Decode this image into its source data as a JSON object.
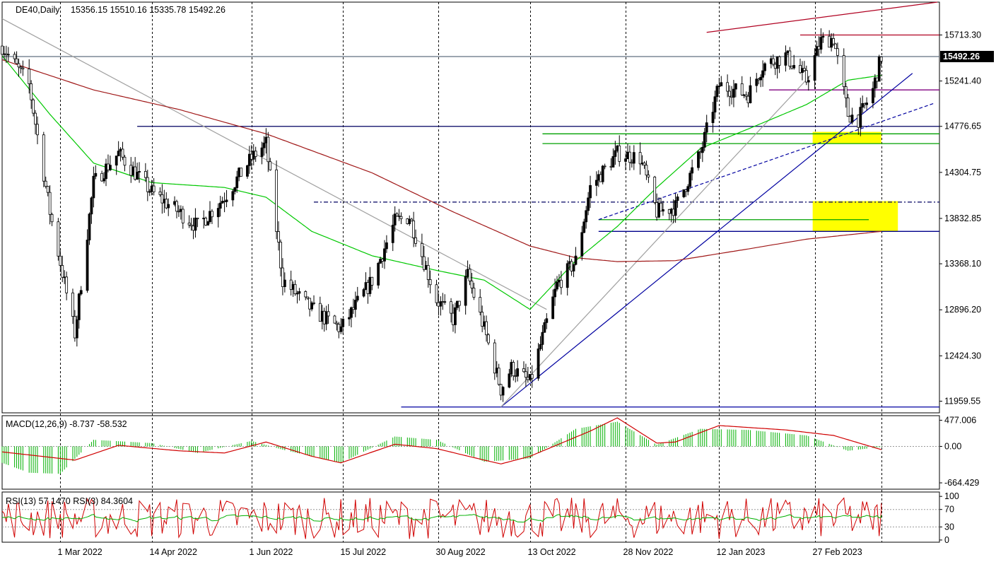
{
  "header": {
    "symbol": "DE40,Daily",
    "ohlc": "15356.15 15510.16 15335.78 15492.26"
  },
  "colors": {
    "background": "#ffffff",
    "bull_candle": "#000000",
    "bear_candle": "#ffffff",
    "ma_fast": "#00c800",
    "ma_slow": "#a01818",
    "trendline_blue": "#0000a0",
    "trendline_red": "#b00020",
    "highlight_zone": "#ffff00",
    "macd_hist": "#00b000",
    "macd_signal": "#d00000",
    "rsi13": "#00b000",
    "rsi3": "#d00000"
  },
  "chart_data": [
    {
      "type": "candlestick",
      "name": "main-price",
      "y_axis_ticks": [
        "15713.30",
        "15241.40",
        "14776.65",
        "14304.75",
        "13832.85",
        "13368.10",
        "12896.20",
        "12424.30",
        "11959.55"
      ],
      "y_axis_tick_values": [
        15713.3,
        15241.4,
        14776.65,
        14304.75,
        13832.85,
        13368.1,
        12896.2,
        12424.3,
        11959.55
      ],
      "ylim": [
        11840,
        16050
      ],
      "current_price_label": "15492.26",
      "x_tick_labels": [
        "1 Mar 2022",
        "14 Apr 2022",
        "1 Jun 2022",
        "15 Jul 2022",
        "30 Aug 2022",
        "13 Oct 2022",
        "28 Nov 2022",
        "12 Jan 2023",
        "27 Feb 2023"
      ],
      "x_tick_dates": [
        "2022-03-01",
        "2022-04-14",
        "2022-06-01",
        "2022-07-15",
        "2022-08-30",
        "2022-10-13",
        "2022-11-28",
        "2023-01-12",
        "2023-02-27"
      ],
      "x_range": [
        "2022-02-01",
        "2023-04-28"
      ],
      "close_series": {
        "dates": [
          "2022-02-01",
          "2022-02-14",
          "2022-02-24",
          "2022-03-08",
          "2022-03-17",
          "2022-03-29",
          "2022-04-14",
          "2022-04-27",
          "2022-05-06",
          "2022-05-19",
          "2022-06-01",
          "2022-06-08",
          "2022-06-16",
          "2022-06-30",
          "2022-07-14",
          "2022-07-29",
          "2022-08-09",
          "2022-08-16",
          "2022-08-29",
          "2022-09-06",
          "2022-09-13",
          "2022-09-21",
          "2022-09-29",
          "2022-10-04",
          "2022-10-13",
          "2022-10-26",
          "2022-11-04",
          "2022-11-11",
          "2022-11-24",
          "2022-12-05",
          "2022-12-13",
          "2022-12-22",
          "2023-01-03",
          "2023-01-12",
          "2023-01-26",
          "2023-02-02",
          "2023-02-13",
          "2023-02-23",
          "2023-03-02",
          "2023-03-08",
          "2023-03-15",
          "2023-03-20",
          "2023-03-27",
          "2023-03-31"
        ],
        "close": [
          15600,
          15200,
          13900,
          12650,
          14200,
          14500,
          14100,
          13900,
          13750,
          14050,
          14450,
          14600,
          13200,
          12900,
          12700,
          13200,
          13800,
          13850,
          13000,
          12800,
          13250,
          12700,
          12080,
          12300,
          12150,
          13150,
          13400,
          14150,
          14500,
          14450,
          13900,
          13950,
          14500,
          15200,
          15100,
          15400,
          15500,
          15250,
          15650,
          15680,
          14900,
          14850,
          15150,
          15492.26
        ]
      },
      "ma_fast": {
        "label": "",
        "dates": [
          "2022-02-01",
          "2022-02-24",
          "2022-03-17",
          "2022-04-14",
          "2022-05-19",
          "2022-06-08",
          "2022-06-30",
          "2022-07-29",
          "2022-08-29",
          "2022-09-21",
          "2022-10-13",
          "2022-11-04",
          "2022-11-24",
          "2022-12-13",
          "2023-01-03",
          "2023-01-26",
          "2023-02-23",
          "2023-03-15",
          "2023-03-31"
        ],
        "values": [
          15500,
          14900,
          14400,
          14200,
          14150,
          14050,
          13700,
          13450,
          13300,
          13200,
          12900,
          13400,
          13750,
          14150,
          14550,
          14750,
          15000,
          15250,
          15300
        ]
      },
      "ma_slow": {
        "label": "",
        "dates": [
          "2022-02-01",
          "2022-03-17",
          "2022-04-27",
          "2022-06-08",
          "2022-07-29",
          "2022-09-06",
          "2022-10-13",
          "2022-11-04",
          "2022-11-24",
          "2022-12-22",
          "2023-01-26",
          "2023-02-23",
          "2023-03-31"
        ],
        "values": [
          15460,
          15150,
          14950,
          14700,
          14300,
          13900,
          13550,
          13430,
          13390,
          13400,
          13520,
          13620,
          13700
        ]
      }
    },
    {
      "type": "macd",
      "name": "macd-panel",
      "label": "MACD(12,26,9) -8.737 -58.532",
      "y_axis_ticks": [
        "477.006",
        "0.00",
        "-664.429"
      ],
      "y_axis_tick_values": [
        477.006,
        0,
        -664.429
      ],
      "ylim": [
        -780,
        560
      ],
      "histogram": {
        "dates": [
          "2022-02-01",
          "2022-02-14",
          "2022-03-01",
          "2022-03-17",
          "2022-04-14",
          "2022-05-06",
          "2022-06-01",
          "2022-06-16",
          "2022-07-14",
          "2022-08-09",
          "2022-08-29",
          "2022-09-21",
          "2022-10-13",
          "2022-11-04",
          "2022-11-24",
          "2022-12-13",
          "2023-01-03",
          "2023-01-26",
          "2023-02-23",
          "2023-03-15",
          "2023-03-31"
        ],
        "values": [
          -300,
          -480,
          -500,
          120,
          60,
          -120,
          100,
          -60,
          -300,
          180,
          120,
          -280,
          -220,
          320,
          450,
          30,
          320,
          300,
          200,
          -80,
          -10
        ]
      },
      "signal": {
        "dates": [
          "2022-02-01",
          "2022-03-08",
          "2022-03-29",
          "2022-04-27",
          "2022-05-19",
          "2022-06-08",
          "2022-06-30",
          "2022-07-14",
          "2022-08-09",
          "2022-08-29",
          "2022-09-21",
          "2022-09-29",
          "2022-10-13",
          "2022-11-11",
          "2022-11-24",
          "2022-12-13",
          "2022-12-22",
          "2023-01-12",
          "2023-02-13",
          "2023-03-08",
          "2023-03-31"
        ],
        "values": [
          -100,
          -250,
          20,
          -80,
          -120,
          80,
          -180,
          -300,
          40,
          -40,
          -250,
          -320,
          -180,
          280,
          520,
          60,
          80,
          380,
          300,
          200,
          -58.532
        ]
      }
    },
    {
      "type": "rsi",
      "name": "rsi-panel",
      "label": "RSI(13) 57.1470  RSI(3) 84.3604",
      "y_axis_ticks": [
        "100",
        "70",
        "30",
        "0"
      ],
      "y_axis_tick_values": [
        100,
        70,
        30,
        0
      ],
      "ylim": [
        -5,
        110
      ],
      "levels": [
        70,
        30
      ],
      "rsi13_last": 57.147,
      "rsi3_last": 84.3604
    }
  ],
  "annotations": {
    "horizontal_lines": [
      {
        "price": 14776.65,
        "color": "#000060",
        "from": "2022-04-07",
        "to": "2023-04-28",
        "style": "solid"
      },
      {
        "price": 14700,
        "color": "#00a000",
        "from": "2022-10-19",
        "to": "2023-04-28",
        "style": "solid"
      },
      {
        "price": 14600,
        "color": "#00a000",
        "from": "2022-10-19",
        "to": "2023-04-28",
        "style": "solid"
      },
      {
        "price": 14000,
        "color": "#000060",
        "from": "2022-07-01",
        "to": "2023-04-28",
        "style": "dashdot"
      },
      {
        "price": 13700,
        "color": "#00008b",
        "from": "2022-11-15",
        "to": "2023-04-28",
        "style": "solid"
      },
      {
        "price": 13820,
        "color": "#00a000",
        "from": "2022-11-15",
        "to": "2023-03-25",
        "style": "solid"
      },
      {
        "price": 11900,
        "color": "#0000a0",
        "from": "2022-08-12",
        "to": "2023-04-28",
        "style": "solid"
      },
      {
        "price": 15713.3,
        "color": "#b00020",
        "from": "2023-02-20",
        "to": "2023-04-28",
        "style": "solid"
      },
      {
        "price": 15150,
        "color": "#800080",
        "from": "2023-02-05",
        "to": "2023-04-28",
        "style": "solid"
      },
      {
        "price": 15492.26,
        "color": "#607080",
        "from": "2022-02-01",
        "to": "2023-04-28",
        "style": "solid"
      }
    ],
    "trendlines": [
      {
        "from": [
          "2022-09-29",
          11900
        ],
        "to": [
          "2023-04-15",
          15320
        ],
        "color": "#0000a0",
        "style": "solid"
      },
      {
        "from": [
          "2022-11-15",
          13820
        ],
        "to": [
          "2023-04-25",
          15010
        ],
        "color": "#0000a0",
        "style": "dashed"
      },
      {
        "from": [
          "2022-09-29",
          11900
        ],
        "to": [
          "2023-02-25",
          15300
        ],
        "color": "#a0a0a0",
        "style": "solid"
      },
      {
        "from": [
          "2022-02-01",
          15880
        ],
        "to": [
          "2022-10-21",
          12900
        ],
        "color": "#a0a0a0",
        "style": "solid"
      },
      {
        "from": [
          "2023-01-06",
          15740
        ],
        "to": [
          "2023-04-27",
          16050
        ],
        "color": "#b00020",
        "style": "solid"
      }
    ],
    "zones": [
      {
        "from_date": "2023-02-26",
        "to_date": "2023-03-31",
        "price_low": 14600,
        "price_high": 14720,
        "color": "#ffff00"
      },
      {
        "from_date": "2023-02-26",
        "to_date": "2023-04-08",
        "price_low": 13700,
        "price_high": 14010,
        "color": "#ffff00"
      }
    ]
  }
}
